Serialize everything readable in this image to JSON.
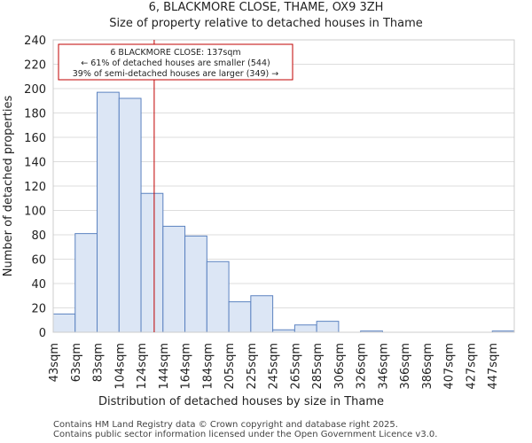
{
  "header": {
    "title_line1": "6, BLACKMORE CLOSE, THAME, OX9 3ZH",
    "title_line2": "Size of property relative to detached houses in Thame"
  },
  "chart_data": {
    "type": "bar",
    "categories": [
      "43sqm",
      "63sqm",
      "83sqm",
      "104sqm",
      "124sqm",
      "144sqm",
      "164sqm",
      "184sqm",
      "205sqm",
      "225sqm",
      "245sqm",
      "265sqm",
      "285sqm",
      "306sqm",
      "326sqm",
      "346sqm",
      "366sqm",
      "386sqm",
      "407sqm",
      "427sqm",
      "447sqm"
    ],
    "values": [
      15,
      81,
      197,
      192,
      114,
      87,
      79,
      58,
      25,
      30,
      2,
      6,
      9,
      0,
      1,
      0,
      0,
      0,
      0,
      0,
      1
    ],
    "ylim": [
      0,
      240
    ],
    "yticks": [
      0,
      20,
      40,
      60,
      80,
      100,
      120,
      140,
      160,
      180,
      200,
      220,
      240
    ],
    "xlabel": "Distribution of detached houses by size in Thame",
    "ylabel": "Number of detached properties",
    "marker_position_bins": 4.6,
    "annotation": {
      "line1": "6 BLACKMORE CLOSE: 137sqm",
      "line2": "← 61% of detached houses are smaller (544)",
      "line3": "39% of semi-detached houses are larger (349) →"
    },
    "colors": {
      "bar_fill": "#dce6f5",
      "bar_stroke": "#5b82c0",
      "marker": "#c00000",
      "grid": "#dddddd"
    }
  },
  "footer": {
    "line1": "Contains HM Land Registry data © Crown copyright and database right 2025.",
    "line2": "Contains public sector information licensed under the Open Government Licence v3.0."
  }
}
